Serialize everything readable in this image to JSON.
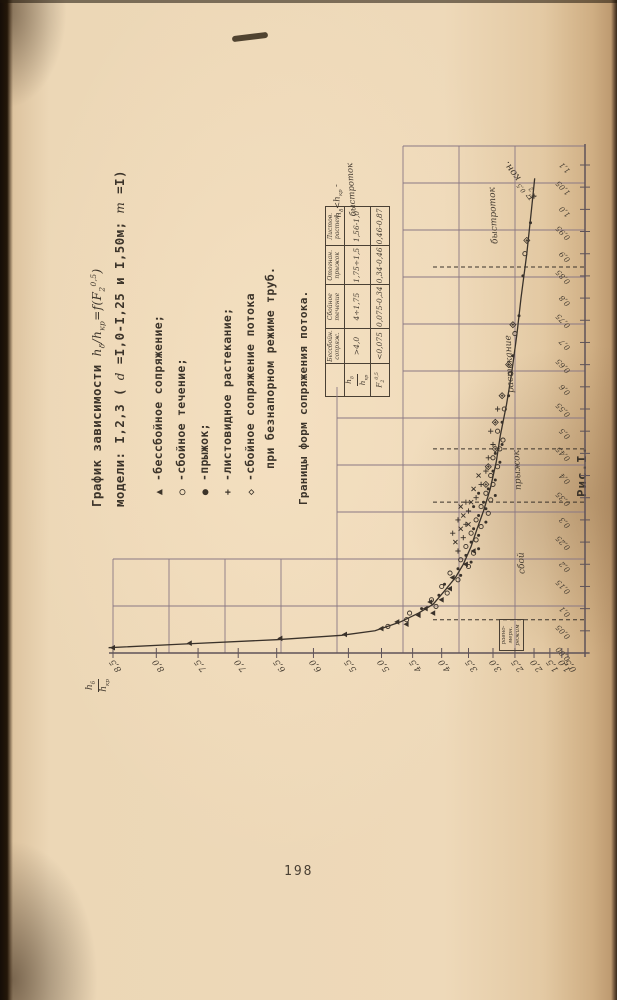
{
  "page": {
    "number": "198"
  },
  "figure": {
    "title_prefix": "График зависимости",
    "formula": {
      "p1": "h",
      "p2": "δ",
      "p3": "/h",
      "p4": "кр",
      "p5": "=f(F",
      "p6": "2",
      "p7": "0,5",
      "p8": ")"
    },
    "title_line2": {
      "p1": "модели: I,2,3 ( ",
      "d": "d",
      "p2": " =I,0-I,25 и I,50м; ",
      "m": "m",
      "p3": " =I)"
    },
    "legend": {
      "items": [
        {
          "marker": "▲",
          "label": "-бессбойное сопряжение;"
        },
        {
          "marker": "○",
          "label": "-сбойное течение;"
        },
        {
          "marker": "●",
          "label": "-прыжок;"
        },
        {
          "marker": "+",
          "label": "-листовидное растекание;"
        },
        {
          "marker": "◇",
          "label": "-сбойное сопряжение потока"
        }
      ],
      "continuation": "при безнапорном режиме труб."
    },
    "boundaries_title": "Границы форм сопряжения потока.",
    "table": {
      "col_headers": [
        "Бессбойн. сопряж.",
        "Сбойное течение",
        "Отогнан. прыжок",
        "Листов. растек."
      ],
      "row_labels": {
        "r1n1": "h",
        "r1n2": "δ",
        "r1d1": "h",
        "r1d2": "кр",
        "r2a": "F",
        "r2b": "2",
        "r2c": "0,5"
      },
      "rows": [
        {
          "values": [
            ">4,0",
            "4÷1,75",
            "1,75÷1,5",
            "1,56-1,0"
          ]
        },
        {
          "values": [
            "<0,075",
            "0,075-0,34",
            "0,34-0,46",
            "0,46-0,87"
          ]
        }
      ]
    },
    "side_note": {
      "l1a": "h",
      "l1b": "δ",
      "l1c": "<h",
      "l1d": "кр",
      "l1e": " -",
      "line2": "быстроток"
    },
    "caption": "Рис.I."
  },
  "chart_data": {
    "type": "scatter",
    "title": "График зависимости hδ/hкр=f(F₂^0,5), модели I,2,3",
    "xlabel_parts": {
      "a": "F",
      "b": "2",
      "c": "0,5",
      "d": " кон."
    },
    "ylabel_num_parts": {
      "a": "h",
      "b": "δ"
    },
    "ylabel_den_parts": {
      "a": "h",
      "b": "кр"
    },
    "xlim": [
      0,
      1.1
    ],
    "ylim": [
      0.5,
      8.5
    ],
    "y_scale": "nonlinear (compressed toward low values, hand-drawn)",
    "grid": true,
    "x_ticks": [
      [
        "0,00",
        0
      ],
      [
        "0,05",
        0.05
      ],
      [
        "0,1",
        0.1
      ],
      [
        "0,15",
        0.15
      ],
      [
        "0,2",
        0.2
      ],
      [
        "0,25",
        0.25
      ],
      [
        "0,3",
        0.3
      ],
      [
        "0,35",
        0.35
      ],
      [
        "0,4",
        0.4
      ],
      [
        "0,45",
        0.45
      ],
      [
        "0,5",
        0.5
      ],
      [
        "0,55",
        0.55
      ],
      [
        "0,6",
        0.6
      ],
      [
        "0,65",
        0.65
      ],
      [
        "0,7",
        0.7
      ],
      [
        "0,75",
        0.75
      ],
      [
        "0,8",
        0.8
      ],
      [
        "0,85",
        0.85
      ],
      [
        "0,9",
        0.9
      ],
      [
        "0,95",
        0.95
      ],
      [
        "1,0",
        1.0
      ],
      [
        "1,05",
        1.05
      ],
      [
        "1,1",
        1.1
      ]
    ],
    "y_ticks": [
      [
        "8,5",
        8.5
      ],
      [
        "8,0",
        8.0
      ],
      [
        "7,5",
        7.5
      ],
      [
        "7,0",
        7.0
      ],
      [
        "6,5",
        6.5
      ],
      [
        "6,0",
        6.0
      ],
      [
        "5,5",
        5.5
      ],
      [
        "5,0",
        5.0
      ],
      [
        "4,5",
        4.5
      ],
      [
        "4,0",
        4.0
      ],
      [
        "3,5",
        3.5
      ],
      [
        "3,0",
        3.0
      ],
      [
        "2,5",
        2.5
      ],
      [
        "2,0",
        2.0
      ],
      [
        "1,5",
        1.5
      ],
      [
        "1,0",
        1.0
      ],
      [
        "0,5",
        0.5
      ]
    ],
    "zone_boundaries_x": [
      0.075,
      0.34,
      0.46,
      0.87
    ],
    "zones": [
      {
        "label_lines": [
          "равно-",
          "мерн.",
          "режим"
        ],
        "x_range": [
          0,
          0.075
        ]
      },
      {
        "label": "сбой",
        "x_range": [
          0.075,
          0.34
        ],
        "label_x": 0.2
      },
      {
        "label": "прыжок",
        "x_range": [
          0.34,
          0.46
        ],
        "label_x": 0.4
      },
      {
        "label": "растекание",
        "x_range": [
          0.46,
          0.87
        ],
        "label_x": 0.64
      },
      {
        "label": "быстроток",
        "x_range": [
          0.87,
          1.1
        ],
        "label_x": 0.97
      }
    ],
    "curve": [
      [
        0.012,
        8.55
      ],
      [
        0.02,
        7.7
      ],
      [
        0.03,
        6.5
      ],
      [
        0.04,
        5.6
      ],
      [
        0.05,
        5.1
      ],
      [
        0.07,
        4.7
      ],
      [
        0.09,
        4.4
      ],
      [
        0.11,
        4.15
      ],
      [
        0.14,
        3.95
      ],
      [
        0.17,
        3.75
      ],
      [
        0.2,
        3.6
      ],
      [
        0.24,
        3.45
      ],
      [
        0.28,
        3.33
      ],
      [
        0.32,
        3.2
      ],
      [
        0.37,
        3.06
      ],
      [
        0.43,
        2.93
      ],
      [
        0.49,
        2.84
      ],
      [
        0.56,
        2.7
      ],
      [
        0.63,
        2.58
      ],
      [
        0.72,
        2.45
      ],
      [
        0.8,
        2.35
      ],
      [
        0.9,
        2.2
      ],
      [
        1.0,
        2.07
      ],
      [
        1.07,
        1.98
      ]
    ],
    "marker_types": {
      "t": "filled-triangle (бессбойное сопряжение)",
      "o": "open-circle (сбойное течение)",
      "d": "filled-dot (прыжок)",
      "p": "plus (листовидное растекание)",
      "x": "x-mark",
      "m": "diamond-cross (сбойное сопряжение при безнапорном режиме труб)"
    },
    "points": [
      [
        0.012,
        8.5,
        "t"
      ],
      [
        0.022,
        7.6,
        "t"
      ],
      [
        0.033,
        6.45,
        "t"
      ],
      [
        0.042,
        5.55,
        "t"
      ],
      [
        0.055,
        5.0,
        "t"
      ],
      [
        0.065,
        4.6,
        "t"
      ],
      [
        0.07,
        4.75,
        "t"
      ],
      [
        0.085,
        4.4,
        "t"
      ],
      [
        0.09,
        4.15,
        "t"
      ],
      [
        0.1,
        4.28,
        "t"
      ],
      [
        0.115,
        4.2,
        "t"
      ],
      [
        0.12,
        4.0,
        "t"
      ],
      [
        0.145,
        3.85,
        "t"
      ],
      [
        0.17,
        3.8,
        "t"
      ],
      [
        0.2,
        3.55,
        "t"
      ],
      [
        0.23,
        3.4,
        "t"
      ],
      [
        0.06,
        4.9,
        "o"
      ],
      [
        0.075,
        4.6,
        "o"
      ],
      [
        0.09,
        4.55,
        "o"
      ],
      [
        0.105,
        4.1,
        "o"
      ],
      [
        0.12,
        4.18,
        "o"
      ],
      [
        0.135,
        3.9,
        "o"
      ],
      [
        0.15,
        4.0,
        "o"
      ],
      [
        0.165,
        3.7,
        "o"
      ],
      [
        0.18,
        3.85,
        "o"
      ],
      [
        0.195,
        3.5,
        "o"
      ],
      [
        0.21,
        3.65,
        "o"
      ],
      [
        0.225,
        3.4,
        "o"
      ],
      [
        0.24,
        3.55,
        "o"
      ],
      [
        0.255,
        3.35,
        "o"
      ],
      [
        0.27,
        3.45,
        "o"
      ],
      [
        0.285,
        3.25,
        "o"
      ],
      [
        0.3,
        3.35,
        "o"
      ],
      [
        0.315,
        3.1,
        "o"
      ],
      [
        0.33,
        3.25,
        "o"
      ],
      [
        0.345,
        3.05,
        "o"
      ],
      [
        0.36,
        3.15,
        "o"
      ],
      [
        0.38,
        3.0,
        "o"
      ],
      [
        0.4,
        3.05,
        "o"
      ],
      [
        0.42,
        2.9,
        "o"
      ],
      [
        0.44,
        3.0,
        "o"
      ],
      [
        0.46,
        2.85,
        "o"
      ],
      [
        0.48,
        2.78,
        "o"
      ],
      [
        0.5,
        2.9,
        "o"
      ],
      [
        0.55,
        2.75,
        "o"
      ],
      [
        0.63,
        2.6,
        "o"
      ],
      [
        0.72,
        2.5,
        "o"
      ],
      [
        0.9,
        2.25,
        "o"
      ],
      [
        0.1,
        4.35,
        "d"
      ],
      [
        0.13,
        4.05,
        "d"
      ],
      [
        0.155,
        3.95,
        "d"
      ],
      [
        0.175,
        3.65,
        "d"
      ],
      [
        0.19,
        3.7,
        "d"
      ],
      [
        0.205,
        3.45,
        "d"
      ],
      [
        0.22,
        3.55,
        "d"
      ],
      [
        0.235,
        3.3,
        "d"
      ],
      [
        0.25,
        3.45,
        "d"
      ],
      [
        0.265,
        3.3,
        "d"
      ],
      [
        0.28,
        3.4,
        "d"
      ],
      [
        0.295,
        3.15,
        "d"
      ],
      [
        0.31,
        3.3,
        "d"
      ],
      [
        0.325,
        3.15,
        "d"
      ],
      [
        0.33,
        3.4,
        "d"
      ],
      [
        0.34,
        3.2,
        "d"
      ],
      [
        0.355,
        2.95,
        "d"
      ],
      [
        0.36,
        3.3,
        "d"
      ],
      [
        0.37,
        3.1,
        "d"
      ],
      [
        0.39,
        2.95,
        "d"
      ],
      [
        0.41,
        3.0,
        "d"
      ],
      [
        0.43,
        2.85,
        "d"
      ],
      [
        0.45,
        2.95,
        "d"
      ],
      [
        0.47,
        2.8,
        "d"
      ],
      [
        0.52,
        2.8,
        "d"
      ],
      [
        0.58,
        2.65,
        "d"
      ],
      [
        0.67,
        2.55,
        "d"
      ],
      [
        0.76,
        2.4,
        "d"
      ],
      [
        0.85,
        2.3,
        "d"
      ],
      [
        0.97,
        2.1,
        "d"
      ],
      [
        0.23,
        3.7,
        "p"
      ],
      [
        0.26,
        3.6,
        "p"
      ],
      [
        0.27,
        3.8,
        "p"
      ],
      [
        0.29,
        3.55,
        "p"
      ],
      [
        0.3,
        3.7,
        "p"
      ],
      [
        0.32,
        3.5,
        "p"
      ],
      [
        0.34,
        3.55,
        "p"
      ],
      [
        0.35,
        3.35,
        "p"
      ],
      [
        0.38,
        3.25,
        "p"
      ],
      [
        0.41,
        3.15,
        "p"
      ],
      [
        0.44,
        3.1,
        "p"
      ],
      [
        0.47,
        3.0,
        "p"
      ],
      [
        0.5,
        3.05,
        "p"
      ],
      [
        0.55,
        2.9,
        "p"
      ],
      [
        1.03,
        2.0,
        "p"
      ],
      [
        0.25,
        3.75,
        "x"
      ],
      [
        0.28,
        3.65,
        "x"
      ],
      [
        0.29,
        3.5,
        "x"
      ],
      [
        0.31,
        3.6,
        "x"
      ],
      [
        0.33,
        3.65,
        "x"
      ],
      [
        0.34,
        3.45,
        "x"
      ],
      [
        0.37,
        3.4,
        "x"
      ],
      [
        0.4,
        3.3,
        "x"
      ],
      [
        0.38,
        3.15,
        "m"
      ],
      [
        0.42,
        3.1,
        "m"
      ],
      [
        0.46,
        2.95,
        "m"
      ],
      [
        0.52,
        2.95,
        "m"
      ],
      [
        0.58,
        2.8,
        "m"
      ],
      [
        0.65,
        2.65,
        "m"
      ],
      [
        0.74,
        2.55,
        "m"
      ],
      [
        0.93,
        2.2,
        "m"
      ]
    ]
  }
}
